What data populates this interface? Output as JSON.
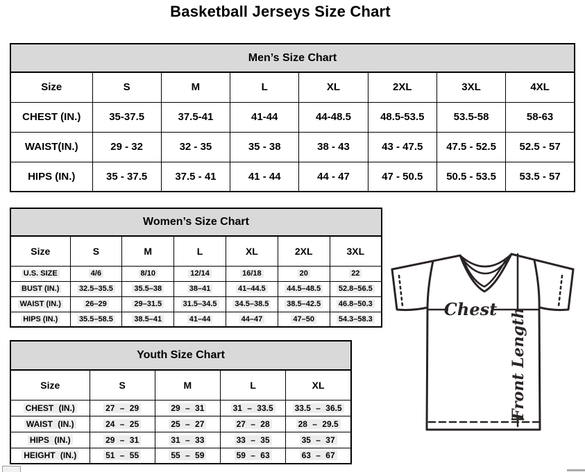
{
  "page": {
    "title": "Basketball Jerseys Size Chart"
  },
  "tables": {
    "mens": {
      "title": "Men’s Size Chart",
      "rows": [
        [
          "Size",
          "S",
          "M",
          "L",
          "XL",
          "2XL",
          "3XL",
          "4XL"
        ],
        [
          "CHEST (IN.)",
          "35-37.5",
          "37.5-41",
          "41-44",
          "44-48.5",
          "48.5-53.5",
          "53.5-58",
          "58-63"
        ],
        [
          "WAIST(IN.)",
          "29 - 32",
          "32 - 35",
          "35 - 38",
          "38 - 43",
          "43 - 47.5",
          "47.5 - 52.5",
          "52.5 - 57"
        ],
        [
          "HIPS (IN.)",
          "35 - 37.5",
          "37.5 - 41",
          "41 - 44",
          "44 - 47",
          "47 - 50.5",
          "50.5 - 53.5",
          "53.5 - 57"
        ]
      ]
    },
    "womens": {
      "title": "Women’s Size Chart",
      "rows": [
        [
          "Size",
          "S",
          "M",
          "L",
          "XL",
          "2XL",
          "3XL"
        ],
        [
          "U.S. SIZE",
          "4/6",
          "8/10",
          "12/14",
          "16/18",
          "20",
          "22"
        ],
        [
          "BUST (IN.)",
          "32.5–35.5",
          "35.5–38",
          "38–41",
          "41–44.5",
          "44.5–48.5",
          "52.8–56.5"
        ],
        [
          "WAIST (IN.)",
          "26–29",
          "29–31.5",
          "31.5–34.5",
          "34.5–38.5",
          "38.5–42.5",
          "46.8–50.3"
        ],
        [
          "HIPS (IN.)",
          "35.5–58.5",
          "38.5–41",
          "41–44",
          "44–47",
          "47–50",
          "54.3–58.3"
        ]
      ]
    },
    "youth": {
      "title": "Youth Size Chart",
      "rows": [
        [
          "Size",
          "S",
          "M",
          "L",
          "XL"
        ],
        [
          "CHEST (IN.)",
          "27 – 29",
          "29 – 31",
          "31 – 33.5",
          "33.5 – 36.5"
        ],
        [
          "WAIST (IN.)",
          "24 – 25",
          "25 – 27",
          "27 – 28",
          "28 – 29.5"
        ],
        [
          "HIPS (IN.)",
          "29 – 31",
          "31 – 33",
          "33 – 35",
          "35 – 37"
        ],
        [
          "HEIGHT (IN.)",
          "51 – 55",
          "55 – 59",
          "59 – 63",
          "63 – 67"
        ]
      ]
    }
  },
  "diagram": {
    "chest_label": "Chest",
    "front_length_label": "Front Length"
  },
  "colors": {
    "table_header_bg": "#d9d9d9",
    "cell_highlight": "#ececec",
    "table_border": "#000000",
    "jersey_outline": "#2a2424"
  }
}
